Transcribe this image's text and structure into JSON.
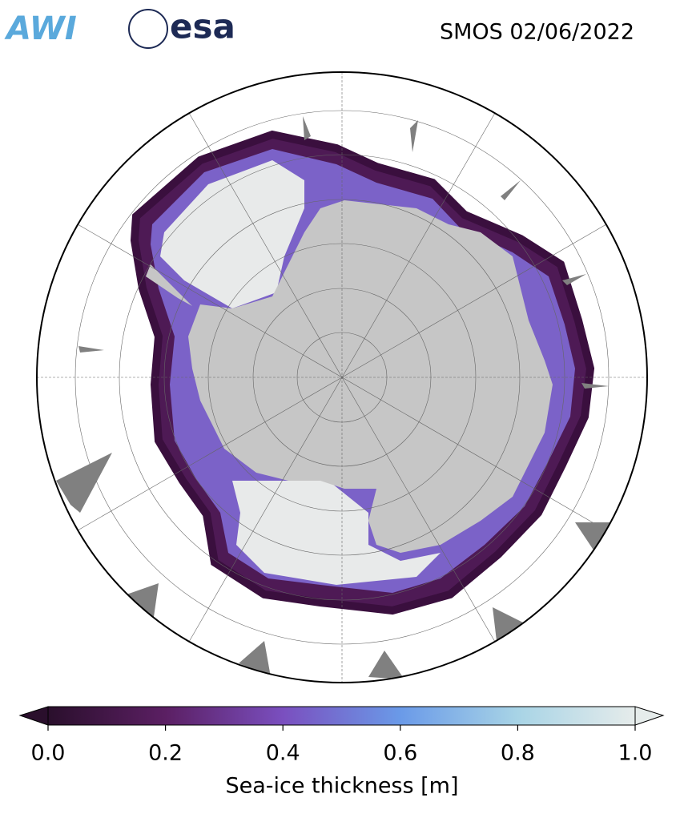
{
  "header": {
    "logos": [
      "AWI",
      "esa"
    ],
    "title": "SMOS 02/06/2022"
  },
  "colorbar": {
    "label": "Sea-ice thickness [m]",
    "lim": [
      0,
      1
    ],
    "ticks": [
      {
        "value": 0,
        "label": "0.0"
      },
      {
        "value": 0.2,
        "label": "0.2"
      },
      {
        "value": 0.4,
        "label": "0.4"
      },
      {
        "value": 0.6,
        "label": "0.6"
      },
      {
        "value": 0.8,
        "label": "0.8"
      },
      {
        "value": 1,
        "label": "1.0"
      }
    ],
    "colors": [
      "#2a0f2c",
      "#5b1f63",
      "#7a4fbf",
      "#6a9ae8",
      "#a8d4e6",
      "#e6eceb"
    ]
  }
}
